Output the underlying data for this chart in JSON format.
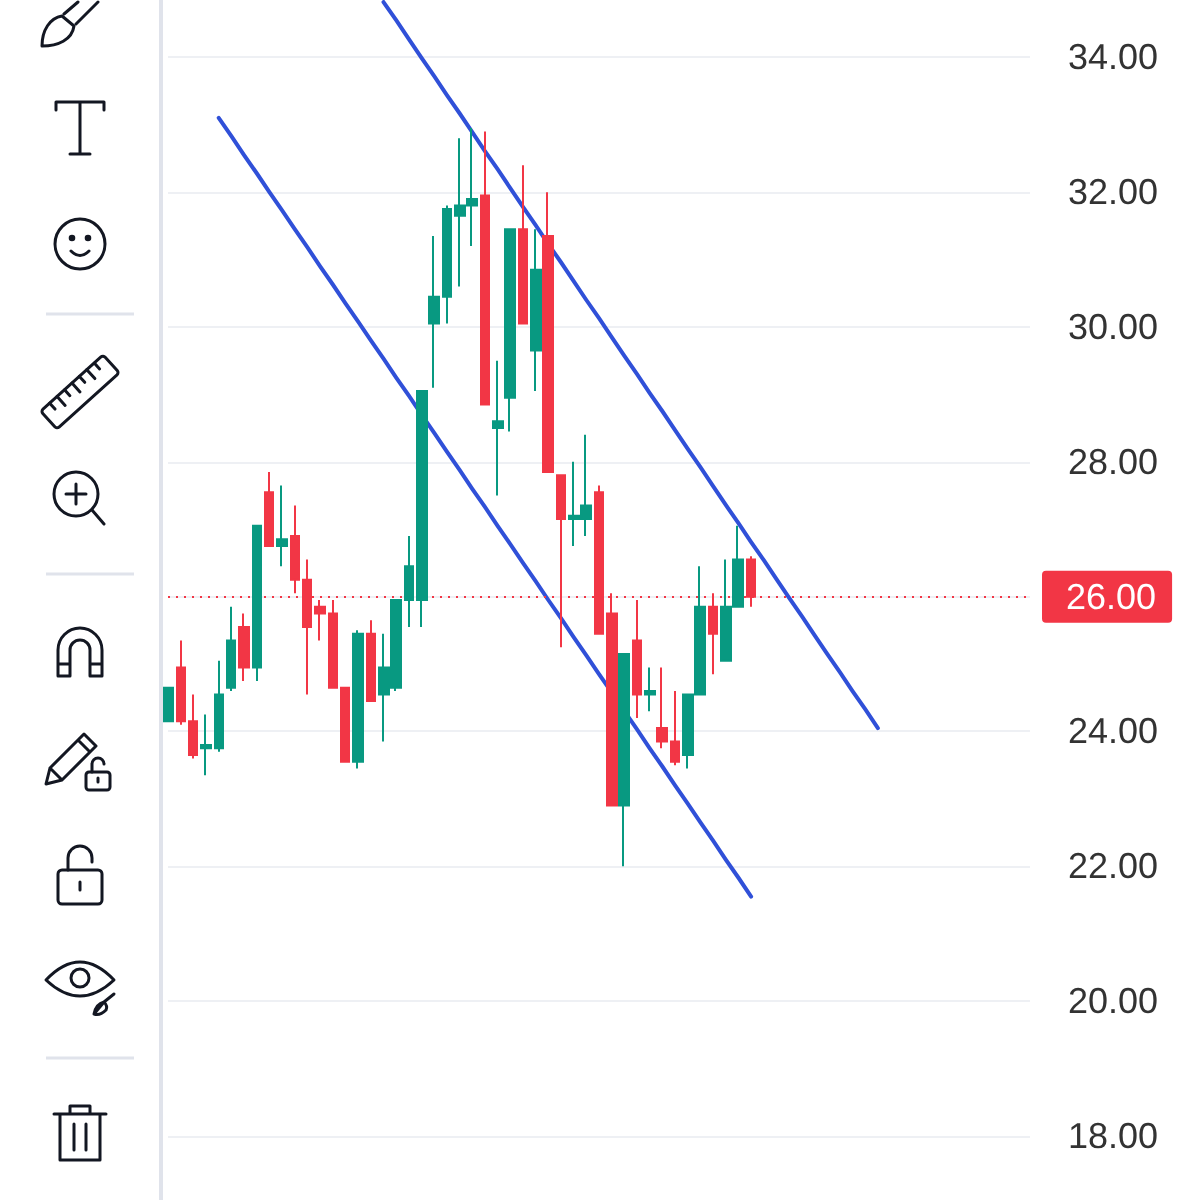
{
  "chart_data": {
    "type": "candlestick",
    "categories": [
      null,
      null,
      null,
      null,
      null,
      null,
      null,
      null,
      null,
      null,
      null,
      null,
      null,
      null,
      null,
      null,
      null,
      null,
      null,
      null,
      null,
      null,
      null,
      null,
      null,
      null,
      null,
      null,
      null,
      null,
      null,
      null,
      null,
      null,
      null,
      null,
      null,
      null,
      null,
      null,
      null,
      null,
      null,
      null,
      null,
      null,
      null,
      null,
      null,
      null,
      null,
      null,
      null,
      null,
      null,
      null,
      null,
      null,
      null,
      null,
      null,
      null,
      null,
      null,
      null,
      null,
      null,
      null,
      null
    ],
    "ohlc": [
      [
        24.15,
        24.65,
        24.15,
        24.65
      ],
      [
        24.95,
        25.35,
        24.1,
        24.15
      ],
      [
        24.15,
        24.55,
        23.6,
        23.65
      ],
      [
        23.75,
        24.25,
        23.35,
        23.8
      ],
      [
        23.75,
        25.05,
        23.7,
        24.55
      ],
      [
        24.65,
        25.85,
        24.6,
        25.35
      ],
      [
        25.55,
        25.75,
        24.75,
        24.95
      ],
      [
        24.95,
        27.05,
        24.75,
        27.05
      ],
      [
        27.55,
        27.85,
        26.75,
        26.75
      ],
      [
        26.75,
        27.65,
        26.45,
        26.85
      ],
      [
        26.9,
        27.35,
        26.05,
        26.25
      ],
      [
        26.25,
        26.55,
        24.55,
        25.55
      ],
      [
        25.85,
        25.95,
        25.35,
        25.75
      ],
      [
        25.75,
        25.95,
        24.65,
        24.65
      ],
      [
        24.65,
        24.65,
        23.55,
        23.55
      ],
      [
        23.55,
        25.5,
        23.45,
        25.45
      ],
      [
        25.45,
        25.65,
        24.45,
        24.45
      ],
      [
        24.55,
        25.45,
        23.85,
        24.95
      ],
      [
        24.65,
        25.95,
        24.6,
        25.95
      ],
      [
        25.95,
        26.9,
        25.55,
        26.45
      ],
      [
        25.95,
        29.05,
        25.55,
        29.05
      ],
      [
        30.05,
        31.35,
        29.1,
        30.45
      ],
      [
        30.45,
        31.8,
        30.05,
        31.75
      ],
      [
        31.65,
        32.8,
        30.6,
        31.8
      ],
      [
        31.8,
        32.95,
        31.2,
        31.9
      ],
      [
        31.95,
        32.9,
        28.85,
        28.85
      ],
      [
        28.5,
        29.5,
        27.5,
        28.6
      ],
      [
        28.95,
        31.45,
        28.45,
        31.45
      ],
      [
        31.45,
        32.4,
        30.05,
        30.05
      ],
      [
        29.65,
        31.45,
        29.05,
        30.85
      ],
      [
        31.35,
        32.0,
        27.85,
        27.85
      ],
      [
        27.8,
        27.8,
        25.25,
        27.15
      ],
      [
        27.15,
        28.0,
        26.75,
        27.2
      ],
      [
        27.15,
        28.4,
        26.9,
        27.35
      ],
      [
        27.55,
        27.65,
        25.45,
        25.45
      ],
      [
        25.75,
        26.05,
        22.9,
        22.9
      ],
      [
        22.9,
        25.15,
        22.0,
        25.15
      ],
      [
        25.35,
        25.95,
        24.2,
        24.55
      ],
      [
        24.55,
        24.95,
        24.3,
        24.6
      ],
      [
        24.05,
        24.95,
        23.75,
        23.85
      ],
      [
        23.85,
        24.6,
        23.5,
        23.55
      ],
      [
        23.65,
        24.55,
        23.45,
        24.55
      ],
      [
        24.55,
        26.45,
        24.55,
        25.85
      ],
      [
        25.85,
        26.05,
        24.85,
        25.45
      ],
      [
        25.05,
        26.55,
        25.05,
        25.85
      ],
      [
        25.85,
        27.05,
        25.85,
        26.55
      ],
      [
        26.55,
        26.6,
        25.85,
        26.0
      ],
      null,
      null,
      null,
      null,
      null,
      null,
      null,
      null,
      null,
      null,
      null,
      null,
      null,
      null,
      null,
      null,
      null,
      null,
      null,
      null,
      null,
      null
    ],
    "colors": [
      "#089981",
      "#f23645",
      "#f23645",
      "#089981",
      "#089981",
      "#089981",
      "#f23645",
      "#089981",
      "#f23645",
      "#089981",
      "#f23645",
      "#f23645",
      "#f23645",
      "#f23645",
      "#f23645",
      "#089981",
      "#f23645",
      "#089981",
      "#089981",
      "#089981",
      "#089981",
      "#089981",
      "#089981",
      "#089981",
      "#089981",
      "#f23645",
      "#089981",
      "#089981",
      "#f23645",
      "#089981",
      "#f23645",
      "#f23645",
      "#089981",
      "#089981",
      "#f23645",
      "#f23645",
      "#089981",
      "#f23645",
      "#089981",
      "#f23645",
      "#f23645",
      "#089981",
      "#089981",
      "#f23645",
      "#089981",
      "#089981",
      "#f23645",
      null,
      null,
      null,
      null,
      null,
      null,
      null,
      null,
      null,
      null,
      null,
      null,
      null,
      null,
      null,
      null,
      null,
      null,
      null,
      null,
      null,
      null
    ],
    "series": [
      {
        "type": "line",
        "color": "#3050d8",
        "values": [
          null,
          null,
          null,
          null,
          null,
          null,
          null,
          null,
          null,
          null,
          null,
          null,
          null,
          null,
          null,
          null,
          null,
          34.82,
          34.55,
          34.27,
          33.99,
          33.72,
          33.44,
          33.17,
          32.89,
          32.61,
          32.34,
          32.06,
          31.78,
          31.51,
          31.23,
          30.96,
          30.68,
          30.4,
          30.13,
          29.85,
          29.57,
          29.3,
          29.02,
          28.75,
          28.47,
          28.19,
          27.92,
          27.64,
          27.36,
          27.09,
          26.81,
          26.54,
          26.26,
          25.98,
          25.71,
          25.43,
          25.15,
          24.88,
          24.6,
          24.33,
          24.05,
          null,
          null,
          null,
          null,
          null,
          null,
          null,
          null,
          null,
          null,
          null,
          null
        ]
      },
      {
        "type": "line",
        "color": "#3050d8",
        "values": [
          null,
          null,
          null,
          null,
          33.1,
          32.83,
          32.55,
          32.28,
          32.0,
          31.73,
          31.45,
          31.18,
          30.9,
          30.63,
          30.35,
          30.08,
          29.8,
          29.53,
          29.25,
          28.98,
          28.7,
          28.43,
          28.15,
          27.88,
          27.6,
          27.33,
          27.05,
          26.78,
          26.5,
          26.23,
          25.95,
          25.68,
          25.4,
          25.13,
          24.85,
          24.58,
          24.3,
          24.03,
          23.75,
          23.48,
          23.2,
          22.93,
          22.65,
          22.38,
          22.1,
          21.83,
          21.55,
          null,
          null,
          null,
          null,
          null,
          null,
          null,
          null,
          null,
          null,
          null,
          null,
          null,
          null,
          null,
          null,
          null,
          null,
          null,
          null,
          null,
          null
        ]
      }
    ],
    "ylim": [
      17.05,
      34.85
    ],
    "yticks": [
      {
        "value": 18,
        "label": "18.00"
      },
      {
        "value": 20,
        "label": "20.00"
      },
      {
        "value": 22,
        "label": "22.00"
      },
      {
        "value": 24,
        "label": "24.00"
      },
      {
        "value": 26,
        "label": null
      },
      {
        "value": 28,
        "label": "28.00"
      },
      {
        "value": 30,
        "label": "30.00"
      },
      {
        "value": 32,
        "label": "32.00"
      },
      {
        "value": 34,
        "label": "34.00"
      }
    ],
    "tick_labels": "y",
    "grid": "y",
    "ref_lines": [
      {
        "axis": "y",
        "value": 26,
        "label": "26.00",
        "color": "#f23645",
        "line_style": "dotted"
      }
    ]
  }
}
